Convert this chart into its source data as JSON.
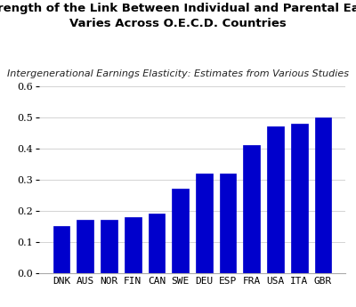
{
  "title_line1": "The Strength of the Link Between Individual and Parental Earnings",
  "title_line2": "Varies Across O.E.C.D. Countries",
  "subtitle": "Intergenerational Earnings Elasticity: Estimates from Various Studies",
  "categories": [
    "DNK",
    "AUS",
    "NOR",
    "FIN",
    "CAN",
    "SWE",
    "DEU",
    "ESP",
    "FRA",
    "USA",
    "ITA",
    "GBR"
  ],
  "values": [
    0.15,
    0.17,
    0.17,
    0.18,
    0.19,
    0.27,
    0.32,
    0.32,
    0.41,
    0.47,
    0.48,
    0.5
  ],
  "bar_color": "#0000CC",
  "ylim": [
    0.0,
    0.6
  ],
  "yticks": [
    0.0,
    0.1,
    0.2,
    0.3,
    0.4,
    0.5,
    0.6
  ],
  "background_color": "#ffffff",
  "title_fontsize": 9.5,
  "subtitle_fontsize": 8,
  "tick_fontsize": 8
}
